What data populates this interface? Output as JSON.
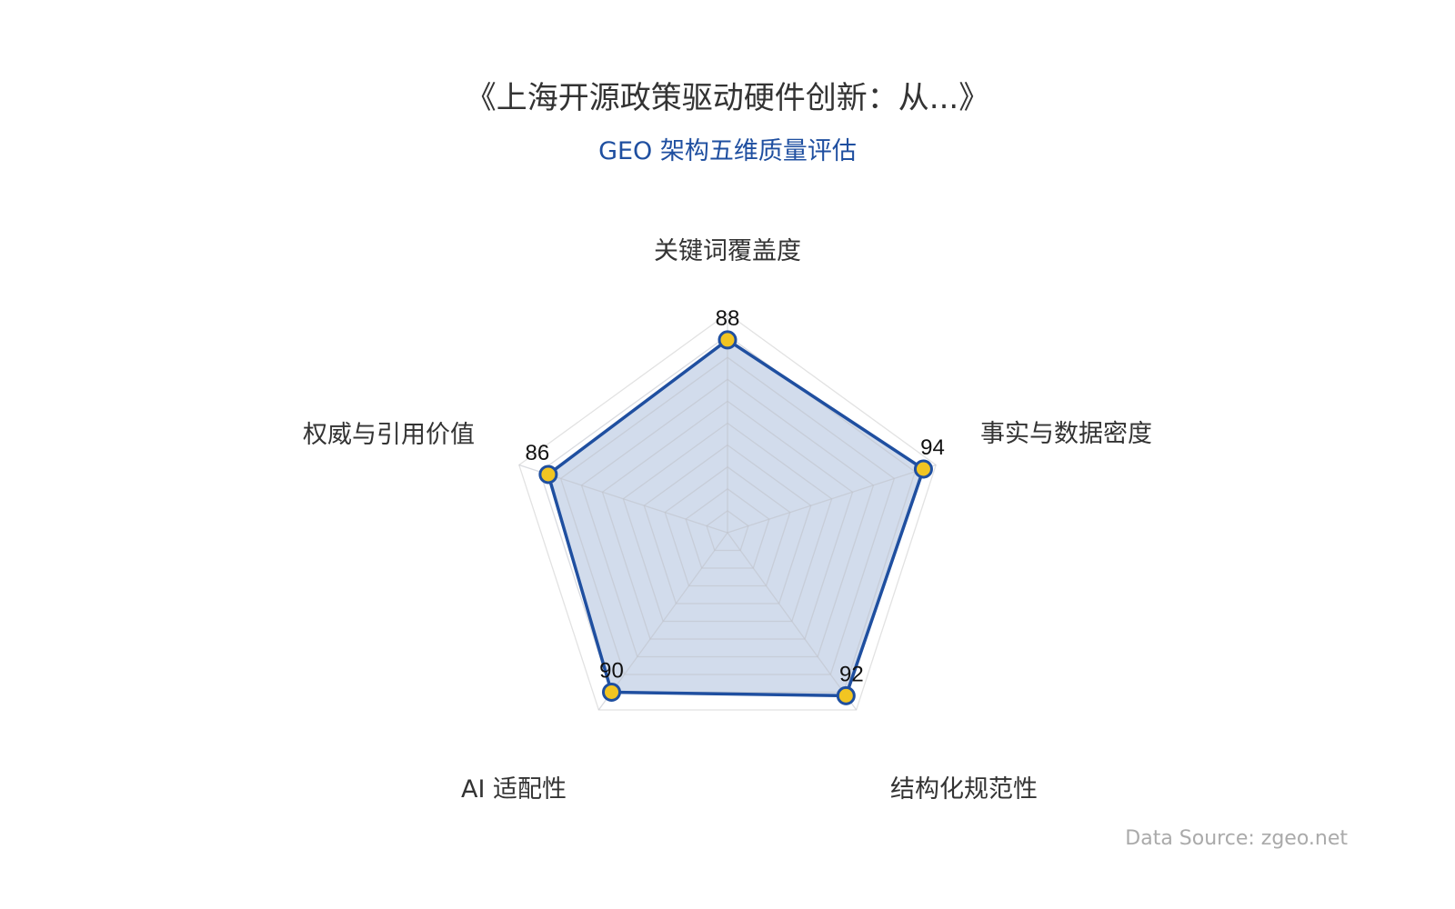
{
  "chart_data": {
    "type": "radar",
    "title": "《上海开源政策驱动硬件创新：从...》",
    "subtitle": "GEO 架构五维质量评估",
    "indicators": [
      "关键词覆盖度",
      "事实与数据密度",
      "结构化规范性",
      "AI 适配性",
      "权威与引用价值"
    ],
    "values": [
      88,
      94,
      92,
      90,
      86
    ],
    "max": 100,
    "split_number": 10,
    "colors": {
      "line": "#1f4fa0",
      "area": "#1f4fa0",
      "point": "#f2c522",
      "grid": "#d4d4d8"
    }
  },
  "source": "Data Source: zgeo.net"
}
